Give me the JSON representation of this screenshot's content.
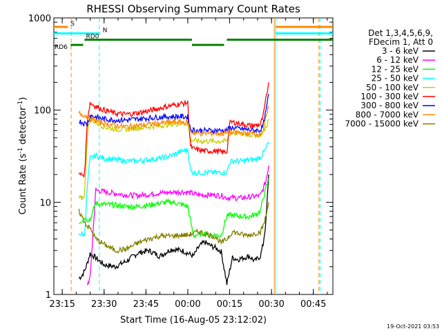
{
  "chart_data": {
    "type": "line",
    "title": "RHESSI Observing Summary Count Rates",
    "xlabel": "Start Time (16-Aug-05 23:12:02)",
    "ylabel_main": "Count Rate (s",
    "ylabel_sup1": "-1",
    "ylabel_mid": " detector",
    "ylabel_sup2": "-1",
    "ylabel_end": ")",
    "footer": "19-Oct-2021 03:53",
    "x_unit": "minutes since 23:12:02",
    "xlim": [
      0,
      100
    ],
    "ylim": [
      1,
      1000
    ],
    "yscale": "log",
    "x_ticks": [
      {
        "at": 3,
        "label": "23:15"
      },
      {
        "at": 18,
        "label": "23:30"
      },
      {
        "at": 33,
        "label": "23:45"
      },
      {
        "at": 48,
        "label": "00:00"
      },
      {
        "at": 63,
        "label": "00:15"
      },
      {
        "at": 78,
        "label": "00:30"
      },
      {
        "at": 93,
        "label": "00:45"
      }
    ],
    "y_ticks": [
      {
        "at": 1,
        "label": "1"
      },
      {
        "at": 10,
        "label": "10"
      },
      {
        "at": 100,
        "label": "100"
      },
      {
        "at": 1000,
        "label": "1000"
      }
    ],
    "legend_header": [
      "Det 1,3,4,5,6,9,",
      "FDecim 1, Att 0"
    ],
    "legend_position": "right",
    "series": [
      {
        "name": "3 - 6 keV",
        "color": "#000000",
        "x": [
          9,
          10,
          11,
          12,
          13,
          15,
          18,
          22,
          26,
          30,
          34,
          38,
          42,
          46,
          48,
          50,
          52,
          54,
          56,
          58,
          60,
          62,
          64,
          66,
          68,
          70,
          72,
          74,
          75,
          76,
          77
        ],
        "y": [
          1.5,
          1.6,
          1.8,
          2.2,
          2.8,
          2.5,
          2.1,
          2.0,
          2.3,
          2.8,
          3.0,
          2.6,
          3.1,
          3.0,
          2.8,
          2.6,
          3.3,
          3.7,
          3.4,
          3.2,
          2.9,
          1.3,
          2.5,
          2.4,
          2.5,
          2.6,
          2.3,
          2.6,
          3.5,
          6,
          20
        ]
      },
      {
        "name": "6 - 12 keV",
        "color": "#ff00ff",
        "x": [
          12,
          13,
          15,
          18,
          22,
          26,
          30,
          34,
          38,
          42,
          46,
          48,
          50,
          52,
          54,
          56,
          58,
          60,
          62,
          64,
          66,
          68,
          70,
          72,
          74,
          75,
          76,
          77
        ],
        "y": [
          1.3,
          1.5,
          13.5,
          13.0,
          12.5,
          12.0,
          11.8,
          12.2,
          12.6,
          12.8,
          13.0,
          12.8,
          12.4,
          12.0,
          12.0,
          12.0,
          12.0,
          11.8,
          11.2,
          11.2,
          11.1,
          11.2,
          11.4,
          11.6,
          11.8,
          14,
          17,
          25
        ]
      },
      {
        "name": "12 - 25 keV",
        "color": "#00ff00",
        "x": [
          9,
          10,
          11,
          12,
          13,
          15,
          18,
          22,
          26,
          30,
          34,
          38,
          42,
          46,
          48,
          50,
          52,
          54,
          56,
          58,
          60,
          62,
          64,
          66,
          68,
          70,
          72,
          74,
          75,
          76,
          77
        ],
        "y": [
          6.0,
          6.4,
          6.8,
          6.5,
          6.5,
          9.8,
          9.5,
          9.3,
          9.0,
          9.0,
          9.3,
          9.8,
          10.1,
          9.4,
          9.0,
          4.3,
          4.5,
          4.6,
          4.4,
          4.4,
          4.4,
          7.2,
          7.2,
          7.1,
          7.0,
          7.0,
          7.3,
          8.0,
          11,
          14,
          18
        ]
      },
      {
        "name": "25 - 50 keV",
        "color": "#00ffff",
        "x": [
          9,
          10,
          11,
          12,
          13,
          15,
          18,
          22,
          26,
          30,
          34,
          38,
          42,
          46,
          48,
          49,
          50,
          52,
          54,
          56,
          58,
          60,
          62,
          63,
          64,
          66,
          68,
          70,
          72,
          74,
          75,
          76,
          77
        ],
        "y": [
          4.6,
          4.5,
          4.4,
          15,
          30,
          32,
          30,
          29,
          28,
          28,
          29,
          30,
          32,
          36,
          37,
          22,
          21,
          21,
          21,
          21,
          21,
          21,
          21,
          27,
          28,
          28,
          28,
          29,
          29,
          31,
          34,
          38,
          45
        ]
      },
      {
        "name": "50 - 100 keV",
        "color": "#cccc00",
        "x": [
          9,
          10,
          11,
          12,
          13,
          15,
          18,
          22,
          26,
          30,
          34,
          38,
          42,
          46,
          48,
          49,
          50,
          52,
          54,
          56,
          58,
          60,
          62,
          63,
          64,
          66,
          68,
          70,
          72,
          74,
          75,
          76,
          77
        ],
        "y": [
          11,
          11,
          12,
          55,
          80,
          74,
          66,
          62,
          62,
          64,
          66,
          68,
          70,
          72,
          72,
          48,
          47,
          46,
          46,
          46,
          46,
          46,
          46,
          56,
          57,
          56,
          55,
          54,
          54,
          54,
          58,
          65,
          80
        ]
      },
      {
        "name": "100 - 300 keV",
        "color": "#ff0000",
        "x": [
          9,
          10,
          11,
          12,
          13,
          15,
          18,
          22,
          26,
          30,
          34,
          38,
          42,
          46,
          48,
          49,
          50,
          52,
          54,
          56,
          58,
          60,
          62,
          63,
          64,
          66,
          68,
          70,
          72,
          74,
          75,
          76,
          77
        ],
        "y": [
          20,
          20,
          20,
          80,
          120,
          110,
          100,
          92,
          90,
          93,
          98,
          105,
          112,
          118,
          120,
          40,
          38,
          37,
          36,
          36,
          36,
          35,
          35,
          72,
          74,
          72,
          70,
          68,
          68,
          70,
          85,
          130,
          200
        ]
      },
      {
        "name": "300 - 800 keV",
        "color": "#0000ff",
        "x": [
          9,
          10,
          11,
          12,
          13,
          15,
          18,
          22,
          26,
          30,
          34,
          38,
          42,
          46,
          48,
          49,
          50,
          52,
          54,
          56,
          58,
          60,
          62,
          63,
          64,
          66,
          68,
          70,
          72,
          74,
          75,
          76,
          77
        ],
        "y": [
          76,
          74,
          72,
          70,
          88,
          84,
          80,
          78,
          78,
          80,
          82,
          84,
          85,
          85,
          84,
          62,
          61,
          60,
          60,
          60,
          60,
          60,
          60,
          64,
          64,
          63,
          62,
          61,
          60,
          61,
          68,
          95,
          150
        ]
      },
      {
        "name": "800 - 7000 keV",
        "color": "#ff8800",
        "x": [
          9,
          10,
          11,
          12,
          13,
          15,
          18,
          22,
          26,
          30,
          34,
          38,
          42,
          46,
          48,
          49,
          50,
          52,
          54,
          56,
          58,
          60,
          62,
          63,
          64,
          66,
          68,
          70,
          72,
          74,
          75,
          76,
          77
        ],
        "y": [
          92,
          90,
          88,
          85,
          80,
          77,
          72,
          68,
          66,
          68,
          70,
          72,
          74,
          74,
          73,
          58,
          57,
          56,
          56,
          56,
          56,
          56,
          56,
          57,
          57,
          57,
          56,
          56,
          55,
          55,
          60,
          80,
          110
        ]
      },
      {
        "name": "7000 - 15000 keV",
        "color": "#808000",
        "x": [
          9,
          10,
          11,
          12,
          13,
          15,
          18,
          22,
          26,
          30,
          34,
          38,
          42,
          46,
          48,
          50,
          52,
          54,
          56,
          58,
          60,
          62,
          64,
          66,
          68,
          70,
          72,
          74,
          75,
          76,
          77
        ],
        "y": [
          8.0,
          7.0,
          6.2,
          5.5,
          5.2,
          4.0,
          3.5,
          3.0,
          3.1,
          3.6,
          4.0,
          4.3,
          4.3,
          4.4,
          4.4,
          4.6,
          4.8,
          4.6,
          4.4,
          4.2,
          3.6,
          4.0,
          4.8,
          4.6,
          4.4,
          4.4,
          4.6,
          4.8,
          5.5,
          7,
          10
        ]
      }
    ],
    "state_markers": [
      {
        "label": "S",
        "color": "#ff8800",
        "y": 800,
        "segments": [
          [
            0,
            5
          ],
          [
            79.5,
            100
          ]
        ]
      },
      {
        "label": "N",
        "color": "#00ffff",
        "y": 680,
        "segments": [
          [
            0,
            16.5
          ],
          [
            79.5,
            100
          ]
        ]
      },
      {
        "label": "RD0",
        "color": "#008000",
        "y": 580,
        "segments": [
          [
            11,
            49.5
          ],
          [
            62,
            100
          ]
        ]
      },
      {
        "label": "RD6",
        "color": "#008000",
        "y": 510,
        "segments": [
          [
            6,
            10.5
          ],
          [
            49.5,
            61
          ]
        ]
      }
    ],
    "vertical_markers": [
      {
        "x": 6.2,
        "color": "#ff8800",
        "style": "dashed"
      },
      {
        "x": 16.3,
        "color": "#00ffff",
        "style": "dashed"
      },
      {
        "x": 79.0,
        "color": "#ff8800",
        "style": "solid"
      },
      {
        "x": 79.5,
        "color": "#00ffff",
        "style": "solid"
      },
      {
        "x": 95.0,
        "color": "#ff8800",
        "style": "dashed"
      },
      {
        "x": 95.4,
        "color": "#00ffff",
        "style": "dashed"
      }
    ]
  }
}
